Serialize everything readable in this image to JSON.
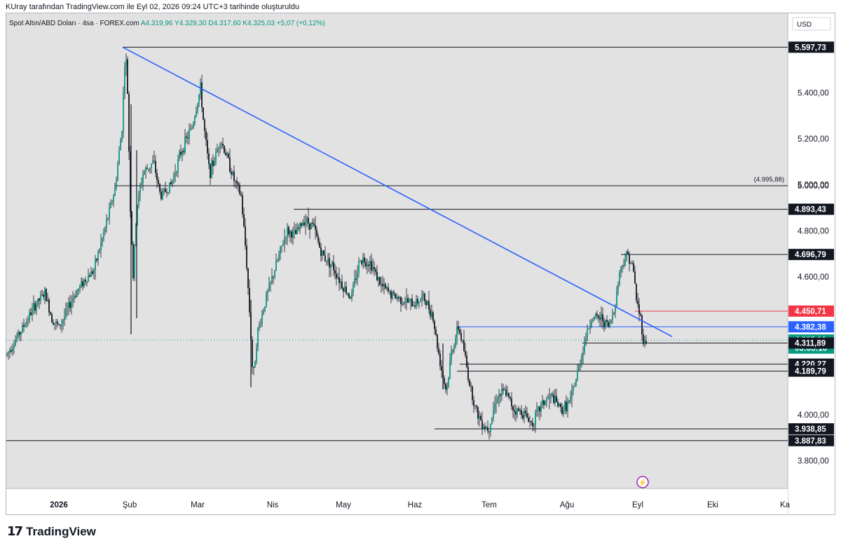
{
  "header_text": "KUray tarafından TradingView.com ile Eyl 02, 2026 09:24 UTC+3 tarihinde oluşturuldu",
  "footer_brand": "TradingView",
  "chart_data": {
    "type": "candlestick",
    "symbol_info": {
      "name": "Spot Altın/ABD Doları · 4sa · FOREX.com",
      "open": "A4.319,96",
      "high": "Y4.329,30",
      "low": "D4.317,60",
      "close": "K4.325,03",
      "change": "+5,07 (+0,12%)"
    },
    "currency": "USD",
    "ylim": [
      3680,
      5745
    ],
    "xlim": [
      0,
      1115
    ],
    "y_ticks": [
      "5.400,00",
      "5.200,00",
      "5.000,00",
      "4.800,00",
      "4.600,00",
      "4.000,00",
      "3.800,00"
    ],
    "y_tick_values": [
      5400,
      5200,
      5000,
      4800,
      4600,
      4000,
      3800
    ],
    "x_ticks": [
      "2026",
      "Şub",
      "Mar",
      "Nis",
      "May",
      "Haz",
      "Tem",
      "Ağu",
      "Eyl",
      "Eki",
      "Ka"
    ],
    "x_tick_pos": [
      75,
      176,
      273,
      380,
      481,
      583,
      689,
      800,
      901,
      1008,
      1111
    ],
    "price_path": [
      [
        0,
        4260
      ],
      [
        20,
        4360
      ],
      [
        40,
        4470
      ],
      [
        55,
        4530
      ],
      [
        65,
        4420
      ],
      [
        75,
        4380
      ],
      [
        85,
        4440
      ],
      [
        95,
        4510
      ],
      [
        110,
        4580
      ],
      [
        125,
        4630
      ],
      [
        140,
        4800
      ],
      [
        155,
        4980
      ],
      [
        165,
        5250
      ],
      [
        170,
        5597.73
      ],
      [
        173,
        5400
      ],
      [
        177,
        4900
      ],
      [
        181,
        4600
      ],
      [
        186,
        4900
      ],
      [
        195,
        5050
      ],
      [
        210,
        5100
      ],
      [
        220,
        4950
      ],
      [
        235,
        5000
      ],
      [
        250,
        5150
      ],
      [
        265,
        5250
      ],
      [
        277,
        5420
      ],
      [
        282,
        5250
      ],
      [
        290,
        5050
      ],
      [
        298,
        5120
      ],
      [
        305,
        5200
      ],
      [
        315,
        5120
      ],
      [
        325,
        5020
      ],
      [
        335,
        4950
      ],
      [
        342,
        4700
      ],
      [
        348,
        4400
      ],
      [
        352,
        4150
      ],
      [
        358,
        4350
      ],
      [
        370,
        4500
      ],
      [
        385,
        4650
      ],
      [
        400,
        4800
      ],
      [
        412,
        4780
      ],
      [
        425,
        4850
      ],
      [
        438,
        4820
      ],
      [
        450,
        4700
      ],
      [
        465,
        4650
      ],
      [
        480,
        4560
      ],
      [
        492,
        4510
      ],
      [
        505,
        4680
      ],
      [
        520,
        4660
      ],
      [
        535,
        4560
      ],
      [
        550,
        4520
      ],
      [
        565,
        4500
      ],
      [
        580,
        4480
      ],
      [
        595,
        4510
      ],
      [
        608,
        4440
      ],
      [
        615,
        4300
      ],
      [
        622,
        4180
      ],
      [
        628,
        4100
      ],
      [
        635,
        4270
      ],
      [
        645,
        4380
      ],
      [
        652,
        4300
      ],
      [
        660,
        4150
      ],
      [
        670,
        4020
      ],
      [
        680,
        3960
      ],
      [
        688,
        3938.85
      ],
      [
        700,
        4080
      ],
      [
        712,
        4100
      ],
      [
        725,
        4020
      ],
      [
        738,
        4010
      ],
      [
        750,
        3960
      ],
      [
        765,
        4050
      ],
      [
        778,
        4080
      ],
      [
        792,
        4020
      ],
      [
        805,
        4060
      ],
      [
        815,
        4180
      ],
      [
        825,
        4320
      ],
      [
        835,
        4420
      ],
      [
        850,
        4420
      ],
      [
        860,
        4380
      ],
      [
        868,
        4470
      ],
      [
        875,
        4620
      ],
      [
        882,
        4680
      ],
      [
        888,
        4696.79
      ],
      [
        895,
        4620
      ],
      [
        900,
        4480
      ],
      [
        905,
        4420
      ],
      [
        910,
        4300
      ],
      [
        913,
        4325.03
      ]
    ],
    "spikes": [
      {
        "x": 178,
        "low": 4350,
        "high": 5350
      },
      {
        "x": 186,
        "low": 4420,
        "high": 5150
      },
      {
        "x": 349,
        "low": 4120,
        "high": 4500
      },
      {
        "x": 623,
        "low": 4110,
        "high": 4310
      }
    ],
    "trendline": {
      "from": [
        166,
        5597.73
      ],
      "to": [
        950,
        4340
      ]
    },
    "hlines": [
      {
        "value": 5597.73,
        "from": 166,
        "label": "5.597,73"
      },
      {
        "value": 4995.88,
        "from": 155,
        "label": "(4.995,88)",
        "axis": "5.000,00"
      },
      {
        "value": 4893.43,
        "from": 410,
        "label": "4.893,43"
      },
      {
        "value": 4696.79,
        "from": 877,
        "label": "4.696,79"
      },
      {
        "value": 4450.71,
        "from": 897,
        "label": "4.450,71",
        "color": "#f23645"
      },
      {
        "value": 4382.38,
        "from": 644,
        "label": "4.382,38",
        "color": "#2962ff"
      },
      {
        "value": 4325.03,
        "from": 0,
        "label": "4.325,03",
        "dotted": true
      },
      {
        "value": 4311.89,
        "from": 822,
        "label": "4.311,89"
      },
      {
        "value": 4220.27,
        "from": 647,
        "label": "4.220,27"
      },
      {
        "value": 4189.79,
        "from": 643,
        "label": "4.189,79"
      },
      {
        "value": 3938.85,
        "from": 611,
        "label": "3.938,85"
      },
      {
        "value": 3887.83,
        "from": 0,
        "label": "3.887,83"
      }
    ],
    "axis_labels": [
      {
        "text": "5.597,73",
        "value": 5597.73,
        "bg": "#131722"
      },
      {
        "text": "4.893,43",
        "value": 4893.43,
        "bg": "#131722"
      },
      {
        "text": "4.696,79",
        "value": 4696.79,
        "bg": "#131722"
      },
      {
        "text": "4.450,71",
        "value": 4450.71,
        "bg": "#f23645"
      },
      {
        "text": "4.382,38",
        "value": 4382.38,
        "bg": "#2962ff"
      },
      {
        "text": "4.325,03",
        "value": 4325.03,
        "bg": "#089981"
      },
      {
        "text": "03:35:16",
        "value": 4290,
        "bg": "#089981"
      },
      {
        "text": "4.311,89",
        "value": 4311.89,
        "bg": "#131722"
      },
      {
        "text": "4.220,27",
        "value": 4220.27,
        "bg": "#131722"
      },
      {
        "text": "4.189,79",
        "value": 4189.79,
        "bg": "#131722"
      },
      {
        "text": "3.938,85",
        "value": 3938.85,
        "bg": "#131722"
      },
      {
        "text": "3.887,83",
        "value": 3887.83,
        "bg": "#131722"
      }
    ],
    "colors": {
      "background": "#e2e2e2",
      "axis_bg": "#ffffff",
      "up": "#089981",
      "down": "#f23645",
      "candle": "#131722",
      "trend": "#2962ff"
    }
  }
}
